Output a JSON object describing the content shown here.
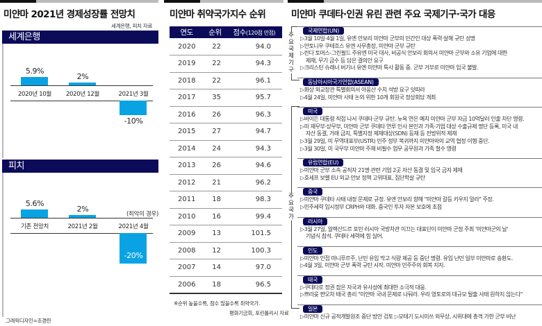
{
  "chart_data": [
    {
      "type": "bar",
      "title": "미얀마 2021년 경제성장률 전망치",
      "source": "세계은행, 피치 자료",
      "panel": "세계은행",
      "categories": [
        "2020년 10월",
        "2020년 12월",
        "2021년 3월"
      ],
      "values": [
        5.9,
        2,
        -10
      ],
      "value_labels": [
        "5.9%",
        "2%",
        "-10%"
      ],
      "ylim": [
        -10,
        5.9
      ]
    },
    {
      "type": "bar",
      "panel": "피치",
      "categories": [
        "기존 전망치",
        "2021년 2월",
        "2021년 4월"
      ],
      "values": [
        5.6,
        2,
        -20
      ],
      "value_labels": [
        "5.6%",
        "2%",
        "-20%"
      ],
      "annotation": "(최악의 경우)",
      "ylim": [
        -20,
        5.6
      ]
    },
    {
      "type": "table",
      "title": "미얀마 취약국가지수 순위",
      "columns": [
        "연도",
        "순위",
        "점수",
        "(120점 만점)"
      ],
      "rows": [
        [
          "2020",
          "22",
          "94.0"
        ],
        [
          "2019",
          "22",
          "94.3"
        ],
        [
          "2018",
          "22",
          "96.1"
        ],
        [
          "2017",
          "35",
          "95.7"
        ],
        [
          "2016",
          "26",
          "96.3"
        ],
        [
          "2015",
          "27",
          "94.7"
        ],
        [
          "2014",
          "24",
          "94.3"
        ],
        [
          "2013",
          "26",
          "94.6"
        ],
        [
          "2012",
          "21",
          "96.2"
        ],
        [
          "2011",
          "18",
          "98.3"
        ],
        [
          "2010",
          "16",
          "99.4"
        ],
        [
          "2009",
          "13",
          "101.5"
        ],
        [
          "2008",
          "12",
          "100.3"
        ],
        [
          "2007",
          "14",
          "97.0"
        ],
        [
          "2006",
          "18",
          "96.5"
        ]
      ],
      "note": "※순위 높을수록, 점수 많을수록 취약국가.",
      "source": "평화기금회, 포린폴리시 자료"
    }
  ],
  "left": {
    "credit": "그래픽디자인=조경란"
  },
  "colors": {
    "navy": "#0b0b5a",
    "bar": "#09a3e3"
  },
  "right": {
    "title": "미얀마 쿠데타·인권 유린 관련 주요 국제기구·국가 대응",
    "bracket_orgs": "주요국제기구",
    "bracket_countries": "주요국가",
    "groups": [
      {
        "name": "국제연합(UN)",
        "items": [
          "▷3월 10일·4월 1일, 유엔 안보리 미얀마 군부의 민간인 대상 폭력·살해 규탄 성명",
          "▷안토니우 쿠테흐스 유엔 사무총장, 미얀마 군부 규탄",
          "▷린다 토머스-그린필드 주유엔 미국 대사, 비공식 안보리 회의서 미얀마 군부와 소유 기업에 대한",
          "제재, 무기 금수 등 담은 결의안 요구",
          "▷크리스틴 슈래너 버기너 유엔 미얀마 특사 활동 중. 군부 거부로 미얀마 입국 불발."
        ]
      },
      {
        "name": "동남아시아국가연합(ASEAN)",
        "items": [
          "▷화상 외교장관 특별회의서 아웅산 수치 석방 요구 잇따라",
          "▷4월 24일, 미얀마 사태 논의 위한 10개 회원국 정상회담 개최"
        ]
      },
      {
        "name": "미국",
        "items": [
          "▷바이든 대통령 직접 나서 쿠데타·군부 규탄. 뉴욕 연은 예치 미얀마 군부 자금 10억달러 인출 차단 명령.",
          "▷미 재무부·상무부, 미얀마 군부 쿠데타 연루 인사 본인과 가족·기업 대상 수출규제 명단 등록, 미국 내",
          "자산 동결, 거래 금지, 특별지정 제재대상(SDN) 등재 등 전방위적 제재",
          "▷3월 29일, 미 무역대표부(USTR) 민주 정부 복귀까지 미얀마와의 교역 협정 이행 중단.",
          "▷3월 30일, 미 국무부 미얀마 주재 비필수 업무 공무원과 가족 철수 명령"
        ]
      },
      {
        "name": "유럽연합(EU)",
        "items": [
          "▷미얀마 군부 소속 공직자 21명·관련 기업 2곳 자산 동결 및 입국 금지 제재",
          "▷호세프 보렐 EU 외교·안보 정책 고위대표, 집단학살 규탄"
        ]
      },
      {
        "name": "중국",
        "items": [
          "▷미얀마 쿠데타 사태 내정 문제로 규정. 유엔 안보리 향해 \"미얀마 갈등 키우지 말라\" 주장.",
          "▷민주세력 임시정부 CRPH와 대화. 중국인 투자 자본 보호에 초점"
        ]
      },
      {
        "name": "러시아",
        "items": [
          "▷3월 27일, 알렉산드르 포민 러시아 국방차관 이끄는 대표단이 미얀마 군정 주최 '미얀마군의 날'",
          "기념식 참석. 쿠데타 세력에 힘 실어."
        ]
      },
      {
        "name": "인도",
        "items": [
          "▷미얀마 인접 마니푸르주, 난민 유입 막고 식량 제공 등 중단 명령. 유입 난민 일부 미얀마로 송환도.",
          "▷4월 3일, 미얀마 군부 폭력 규탄 시작. 미얀마 민주주의 회복 지지."
        ]
      },
      {
        "name": "태국",
        "items": [
          "▷쿠데타로 정권 잡은 자국과 유사성에 최대한 소극적 대응.",
          "▷쁘라윳 짠오차 태국 총리 \"미얀마 국내 문제로 나둬라. 우리 영토로의 대규모 탈출 사태 원하지 않는다\""
        ]
      },
      {
        "name": "일본",
        "items": [
          "▷미얀마 신규 공적개발원조 중단 방안 검토  ▷모테기 도시미쓰 외무상, 시위대에 총격 가한 군부 비난"
        ]
      }
    ]
  }
}
